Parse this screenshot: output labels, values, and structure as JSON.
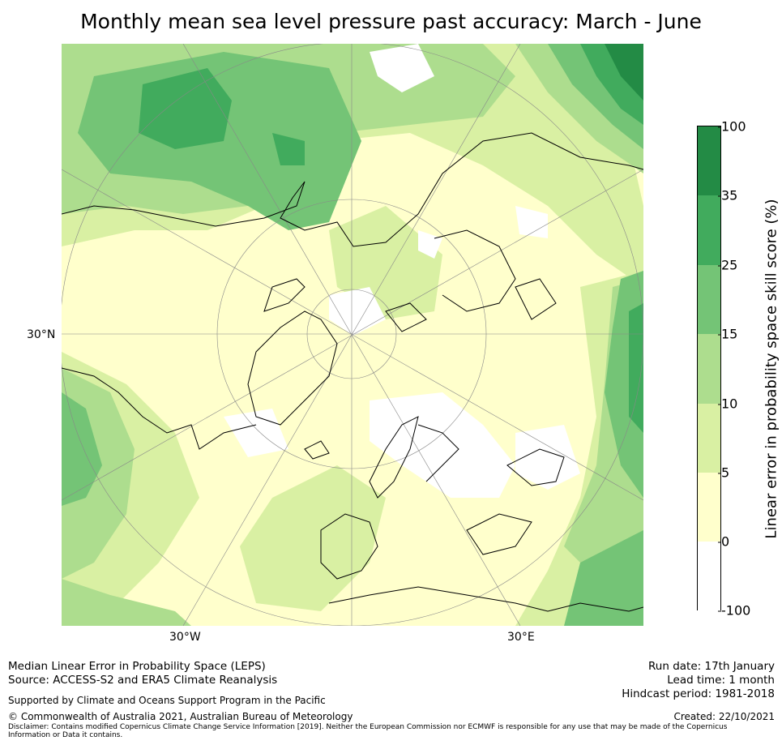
{
  "title": "Monthly mean sea level pressure past accuracy: March - June",
  "map": {
    "lat_label": "30°N",
    "lon_labels": [
      "30°W",
      "30°E"
    ],
    "colors": {
      "land_outline": "#000000",
      "grid": "#888888"
    }
  },
  "colorbar": {
    "label": "Linear error in probability space skill score (%)",
    "ticks": [
      "100",
      "35",
      "25",
      "15",
      "10",
      "5",
      "0",
      "-100"
    ],
    "bins": [
      {
        "range": "35 to 100",
        "color": "#238b45"
      },
      {
        "range": "25 to 35",
        "color": "#41ab5d"
      },
      {
        "range": "15 to 25",
        "color": "#74c476"
      },
      {
        "range": "10 to 15",
        "color": "#addd8e"
      },
      {
        "range": "5 to 10",
        "color": "#d9f0a3"
      },
      {
        "range": "0 to 5",
        "color": "#ffffcc"
      },
      {
        "range": "-100 to 0",
        "color": "#ffffff"
      }
    ]
  },
  "footer": {
    "left_line1": "Median Linear Error in Probability Space (LEPS)",
    "left_line2": "Source: ACCESS-S2 and ERA5 Climate Reanalysis",
    "support": "Supported by Climate and Oceans Support Program in the Pacific",
    "copyright": "© Commonwealth of Australia 2021, Australian Bureau of Meteorology",
    "disclaimer_line1": "Disclaimer: Contains modified Copernicus Climate Change Service Information [2019]. Neither the European Commission nor ECMWF is responsible for any use that may be made of the Copernicus",
    "disclaimer_line2": "Information or Data it contains.",
    "run_date": "Run date: 17th January",
    "lead_time": "Lead time: 1 month",
    "hindcast": "Hindcast period: 1981-2018",
    "created": "Created: 22/10/2021"
  }
}
